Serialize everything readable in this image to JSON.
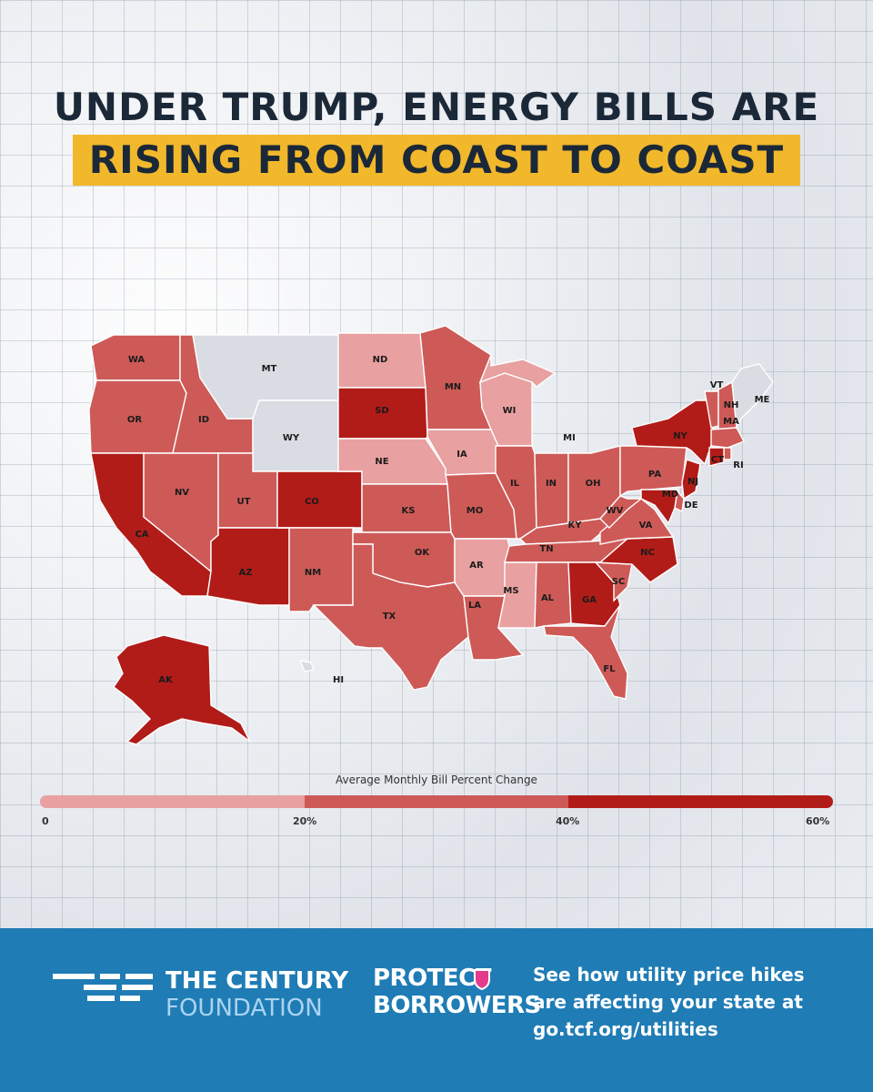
{
  "title": {
    "line1": "UNDER TRUMP, ENERGY BILLS ARE",
    "line2": "RISING FROM COAST TO COAST"
  },
  "colors": {
    "none": "#d9dde3",
    "low": "#e8a0a0",
    "mid": "#cd5a57",
    "high": "#b11c18",
    "highlight": "#f2b82c",
    "footer": "#1f7cb5"
  },
  "states": [
    {
      "code": "WA",
      "level": "mid"
    },
    {
      "code": "OR",
      "level": "mid"
    },
    {
      "code": "CA",
      "level": "high"
    },
    {
      "code": "ID",
      "level": "mid"
    },
    {
      "code": "NV",
      "level": "mid"
    },
    {
      "code": "MT",
      "level": "none"
    },
    {
      "code": "WY",
      "level": "none"
    },
    {
      "code": "UT",
      "level": "mid"
    },
    {
      "code": "AZ",
      "level": "high"
    },
    {
      "code": "CO",
      "level": "high"
    },
    {
      "code": "NM",
      "level": "mid"
    },
    {
      "code": "ND",
      "level": "low"
    },
    {
      "code": "SD",
      "level": "high"
    },
    {
      "code": "NE",
      "level": "low"
    },
    {
      "code": "KS",
      "level": "mid"
    },
    {
      "code": "OK",
      "level": "mid"
    },
    {
      "code": "TX",
      "level": "mid"
    },
    {
      "code": "MN",
      "level": "mid"
    },
    {
      "code": "IA",
      "level": "low"
    },
    {
      "code": "MO",
      "level": "mid"
    },
    {
      "code": "AR",
      "level": "low"
    },
    {
      "code": "LA",
      "level": "mid"
    },
    {
      "code": "WI",
      "level": "low"
    },
    {
      "code": "MI",
      "level": "low"
    },
    {
      "code": "IL",
      "level": "mid"
    },
    {
      "code": "IN",
      "level": "mid"
    },
    {
      "code": "OH",
      "level": "mid"
    },
    {
      "code": "KY",
      "level": "mid"
    },
    {
      "code": "TN",
      "level": "mid"
    },
    {
      "code": "MS",
      "level": "low"
    },
    {
      "code": "AL",
      "level": "mid"
    },
    {
      "code": "GA",
      "level": "high"
    },
    {
      "code": "FL",
      "level": "mid"
    },
    {
      "code": "SC",
      "level": "mid"
    },
    {
      "code": "NC",
      "level": "high"
    },
    {
      "code": "VA",
      "level": "mid"
    },
    {
      "code": "WV",
      "level": "mid"
    },
    {
      "code": "PA",
      "level": "mid"
    },
    {
      "code": "NY",
      "level": "high"
    },
    {
      "code": "VT",
      "level": "mid"
    },
    {
      "code": "NH",
      "level": "mid"
    },
    {
      "code": "ME",
      "level": "none"
    },
    {
      "code": "MA",
      "level": "mid"
    },
    {
      "code": "RI",
      "level": "mid"
    },
    {
      "code": "CT",
      "level": "high"
    },
    {
      "code": "NJ",
      "level": "high"
    },
    {
      "code": "DE",
      "level": "mid"
    },
    {
      "code": "MD",
      "level": "high"
    },
    {
      "code": "AK",
      "level": "high"
    },
    {
      "code": "HI",
      "level": "none"
    }
  ],
  "legend": {
    "title": "Average Monthly Bill Percent Change",
    "ticks": [
      "0",
      "20%",
      "40%",
      "60%"
    ]
  },
  "footer": {
    "org_name": "THE CENTURY",
    "org_sub": "FOUNDATION",
    "partner_line1": "PROTECT",
    "partner_line2": "BORROWERS",
    "cta": "See how utility price hikes are affecting your state at go.tcf.org/utilities"
  }
}
